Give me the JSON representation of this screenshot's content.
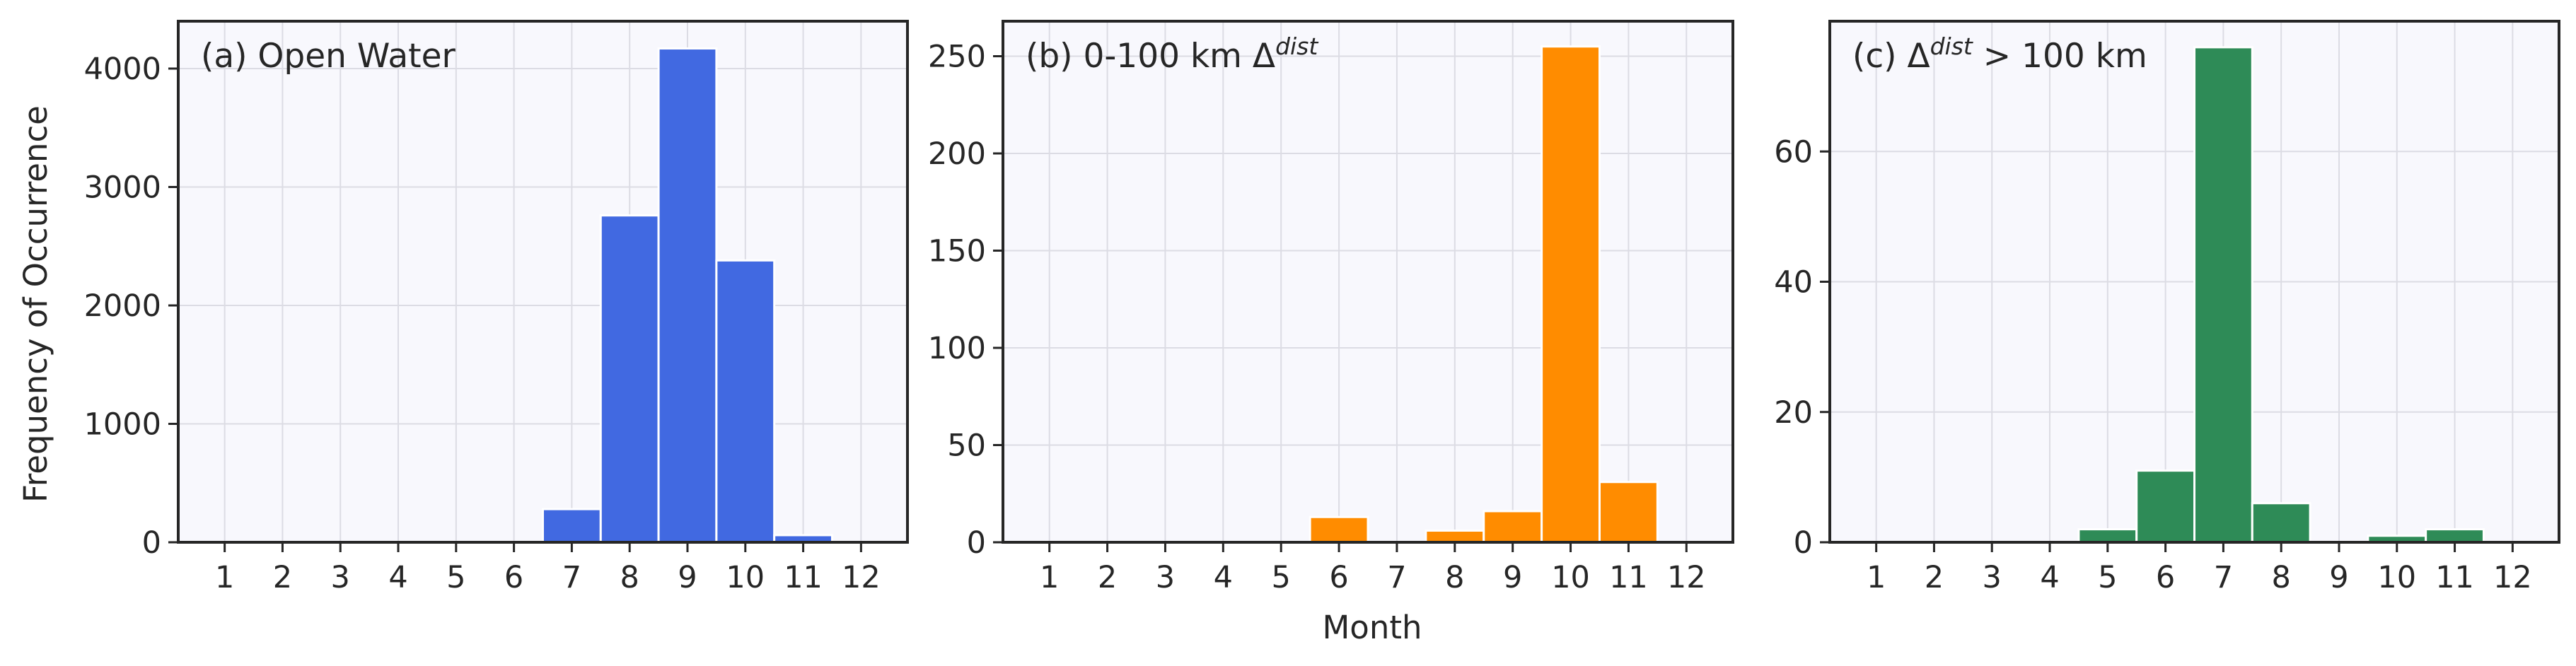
{
  "figure": {
    "xlabel": "Month",
    "ylabel": "Frequency of Occurrence"
  },
  "colors": {
    "panel_bg": "#f8f8fd",
    "grid": "#dcdce4",
    "axis": "#262626",
    "bar_edge": "#ffffff"
  },
  "chart_data": [
    {
      "type": "bar",
      "title": "(a) Open Water",
      "categories": [
        "1",
        "2",
        "3",
        "4",
        "5",
        "6",
        "7",
        "8",
        "9",
        "10",
        "11",
        "12"
      ],
      "values": [
        0,
        0,
        0,
        0,
        0,
        0,
        280,
        2760,
        4170,
        2380,
        60,
        0
      ],
      "yticks": [
        0,
        1000,
        2000,
        3000,
        4000
      ],
      "ylim": [
        0,
        4400
      ],
      "color": "#4169e1",
      "grid": true
    },
    {
      "type": "bar",
      "title_parts": {
        "prefix": "(b) 0-100 km Δ",
        "sup": "dist",
        "suffix": ""
      },
      "categories": [
        "1",
        "2",
        "3",
        "4",
        "5",
        "6",
        "7",
        "8",
        "9",
        "10",
        "11",
        "12"
      ],
      "values": [
        0,
        0,
        0,
        0,
        0,
        13,
        0,
        6,
        16,
        255,
        31,
        0
      ],
      "yticks": [
        0,
        50,
        100,
        150,
        200,
        250
      ],
      "ylim": [
        0,
        268
      ],
      "color": "#ff8c00",
      "grid": true
    },
    {
      "type": "bar",
      "title_parts": {
        "prefix": "(c) Δ",
        "sup": "dist",
        "suffix": " > 100 km"
      },
      "categories": [
        "1",
        "2",
        "3",
        "4",
        "5",
        "6",
        "7",
        "8",
        "9",
        "10",
        "11",
        "12"
      ],
      "values": [
        0,
        0,
        0,
        0,
        2,
        11,
        76,
        6,
        0,
        1,
        2,
        0
      ],
      "yticks": [
        0,
        20,
        40,
        60
      ],
      "ylim": [
        0,
        80
      ],
      "color": "#2e8b57",
      "grid": true
    }
  ]
}
